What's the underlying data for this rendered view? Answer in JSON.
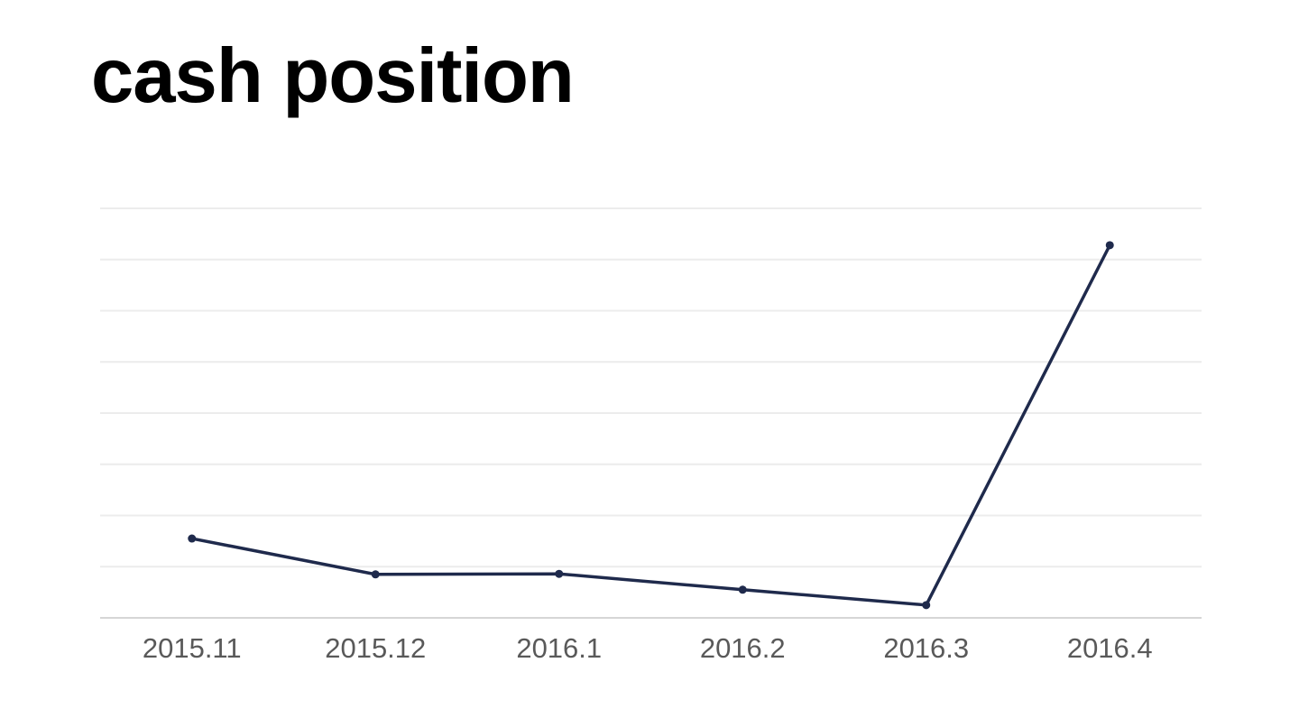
{
  "title": "cash position",
  "chart_data": {
    "type": "line",
    "title": "cash position",
    "categories": [
      "2015.11",
      "2015.12",
      "2016.1",
      "2016.2",
      "2016.3",
      "2016.4"
    ],
    "series": [
      {
        "name": "cash position",
        "values": [
          1.55,
          0.85,
          0.86,
          0.55,
          0.25,
          7.28
        ]
      }
    ],
    "xlabel": "",
    "ylabel": "",
    "ylim": [
      0,
      8
    ],
    "grid_interval": 1,
    "grid": true,
    "legend": false,
    "y_tick_labels_visible": false,
    "marker": "dot",
    "colors": {
      "line": "#1f2a4c",
      "marker": "#1f2a4c",
      "gridline": "#ececec",
      "axis_line": "#d6d6d6",
      "tick_label": "#595959",
      "title": "#000000",
      "background": "#ffffff"
    }
  }
}
